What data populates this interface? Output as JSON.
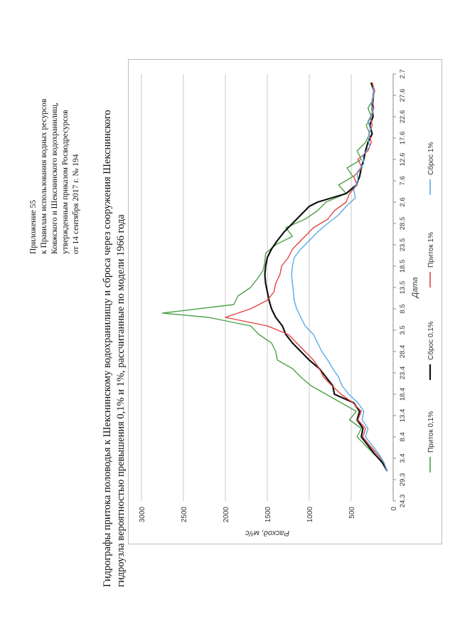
{
  "header": {
    "lines": [
      "Приложение 55",
      "к Правилам использования водных ресурсов",
      "Ковжского и Шекснинского водохранилищ,",
      "утвержденным приказом Росводресурсов",
      "от 14 сентября 2017 г. № 194"
    ]
  },
  "title": {
    "line1": "Гидрографы притока половодья к Шекснинскому водохранилищу и сброса через сооружения Шекснинского",
    "line2": "гидроузла вероятностью превышения 0,1% и 1%, рассчитанные по модели 1966 года"
  },
  "chart_data": {
    "type": "line",
    "title": "",
    "xlabel": "Дата",
    "ylabel": "Расход, м³/с",
    "ylim": [
      0,
      3000
    ],
    "yticks": [
      0,
      500,
      1000,
      1500,
      2000,
      2500,
      3000
    ],
    "xticks": [
      "24.3",
      "29.3",
      "3.4",
      "8.4",
      "13.4",
      "18.4",
      "23.4",
      "28.4",
      "3.5",
      "8.5",
      "13.5",
      "18.5",
      "23.5",
      "28.5",
      "2.6",
      "7.6",
      "12.6",
      "17.6",
      "22.6",
      "27.6",
      "2.7"
    ],
    "day_range": [
      0,
      100
    ],
    "grid": "horizontal",
    "legend_position": "bottom",
    "series": [
      {
        "name": "Приток 0,1%",
        "color": "#4da146",
        "points": [
          [
            7,
            70
          ],
          [
            9,
            120
          ],
          [
            11,
            230
          ],
          [
            13,
            330
          ],
          [
            15,
            430
          ],
          [
            17,
            380
          ],
          [
            19,
            520
          ],
          [
            21,
            440
          ],
          [
            23,
            620
          ],
          [
            25,
            800
          ],
          [
            27,
            980
          ],
          [
            29,
            1100
          ],
          [
            31,
            1200
          ],
          [
            33,
            1380
          ],
          [
            35,
            1400
          ],
          [
            37,
            1450
          ],
          [
            39,
            1600
          ],
          [
            41,
            1700
          ],
          [
            43,
            2200
          ],
          [
            44,
            2750
          ],
          [
            46,
            1900
          ],
          [
            48,
            1850
          ],
          [
            50,
            1700
          ],
          [
            52,
            1620
          ],
          [
            54,
            1550
          ],
          [
            56,
            1530
          ],
          [
            58,
            1520
          ],
          [
            60,
            1400
          ],
          [
            62,
            1200
          ],
          [
            64,
            1280
          ],
          [
            66,
            1050
          ],
          [
            68,
            900
          ],
          [
            70,
            800
          ],
          [
            72,
            560
          ],
          [
            74,
            650
          ],
          [
            76,
            480
          ],
          [
            78,
            550
          ],
          [
            80,
            380
          ],
          [
            82,
            430
          ],
          [
            84,
            330
          ],
          [
            86,
            280
          ],
          [
            88,
            320
          ],
          [
            90,
            260
          ],
          [
            92,
            300
          ],
          [
            94,
            240
          ],
          [
            96,
            230
          ],
          [
            98,
            270
          ]
        ]
      },
      {
        "name": "Сброс 0,1%",
        "color": "#111111",
        "points": [
          [
            7,
            70
          ],
          [
            9,
            130
          ],
          [
            11,
            220
          ],
          [
            13,
            300
          ],
          [
            15,
            380
          ],
          [
            17,
            360
          ],
          [
            19,
            430
          ],
          [
            21,
            400
          ],
          [
            23,
            470
          ],
          [
            25,
            700
          ],
          [
            27,
            720
          ],
          [
            29,
            800
          ],
          [
            31,
            880
          ],
          [
            33,
            1000
          ],
          [
            35,
            1100
          ],
          [
            37,
            1200
          ],
          [
            39,
            1280
          ],
          [
            41,
            1320
          ],
          [
            43,
            1400
          ],
          [
            45,
            1450
          ],
          [
            47,
            1480
          ],
          [
            49,
            1500
          ],
          [
            51,
            1520
          ],
          [
            53,
            1530
          ],
          [
            55,
            1520
          ],
          [
            57,
            1500
          ],
          [
            59,
            1450
          ],
          [
            61,
            1380
          ],
          [
            63,
            1300
          ],
          [
            65,
            1200
          ],
          [
            67,
            1100
          ],
          [
            69,
            1000
          ],
          [
            70,
            900
          ],
          [
            72,
            560
          ],
          [
            74,
            440
          ],
          [
            76,
            400
          ],
          [
            78,
            380
          ],
          [
            80,
            350
          ],
          [
            82,
            330
          ],
          [
            84,
            300
          ],
          [
            86,
            250
          ],
          [
            88,
            280
          ],
          [
            90,
            240
          ],
          [
            92,
            250
          ],
          [
            94,
            240
          ],
          [
            96,
            230
          ],
          [
            98,
            260
          ]
        ]
      },
      {
        "name": "Приток 1%",
        "color": "#e0453f",
        "points": [
          [
            7,
            70
          ],
          [
            9,
            110
          ],
          [
            11,
            190
          ],
          [
            13,
            280
          ],
          [
            15,
            360
          ],
          [
            17,
            330
          ],
          [
            19,
            420
          ],
          [
            21,
            380
          ],
          [
            23,
            480
          ],
          [
            25,
            620
          ],
          [
            27,
            730
          ],
          [
            29,
            830
          ],
          [
            31,
            880
          ],
          [
            33,
            950
          ],
          [
            35,
            1050
          ],
          [
            37,
            1150
          ],
          [
            39,
            1250
          ],
          [
            41,
            1500
          ],
          [
            43,
            2000
          ],
          [
            45,
            1700
          ],
          [
            47,
            1500
          ],
          [
            49,
            1420
          ],
          [
            51,
            1400
          ],
          [
            53,
            1350
          ],
          [
            55,
            1330
          ],
          [
            57,
            1250
          ],
          [
            59,
            1200
          ],
          [
            61,
            1100
          ],
          [
            63,
            1000
          ],
          [
            64,
            950
          ],
          [
            66,
            780
          ],
          [
            68,
            700
          ],
          [
            70,
            560
          ],
          [
            72,
            520
          ],
          [
            74,
            430
          ],
          [
            76,
            470
          ],
          [
            78,
            370
          ],
          [
            80,
            420
          ],
          [
            82,
            300
          ],
          [
            84,
            260
          ],
          [
            86,
            290
          ],
          [
            88,
            250
          ],
          [
            90,
            270
          ],
          [
            92,
            230
          ],
          [
            94,
            250
          ],
          [
            96,
            220
          ],
          [
            98,
            250
          ]
        ]
      },
      {
        "name": "Сброс 1%",
        "color": "#5aa9e6",
        "points": [
          [
            7,
            70
          ],
          [
            9,
            110
          ],
          [
            11,
            170
          ],
          [
            13,
            250
          ],
          [
            15,
            330
          ],
          [
            17,
            300
          ],
          [
            19,
            370
          ],
          [
            21,
            350
          ],
          [
            23,
            420
          ],
          [
            25,
            530
          ],
          [
            27,
            610
          ],
          [
            29,
            650
          ],
          [
            31,
            720
          ],
          [
            33,
            780
          ],
          [
            35,
            850
          ],
          [
            37,
            900
          ],
          [
            39,
            950
          ],
          [
            41,
            1050
          ],
          [
            43,
            1100
          ],
          [
            45,
            1150
          ],
          [
            47,
            1180
          ],
          [
            49,
            1190
          ],
          [
            51,
            1200
          ],
          [
            53,
            1210
          ],
          [
            55,
            1200
          ],
          [
            57,
            1180
          ],
          [
            59,
            1100
          ],
          [
            61,
            1000
          ],
          [
            63,
            900
          ],
          [
            65,
            780
          ],
          [
            67,
            650
          ],
          [
            69,
            560
          ],
          [
            71,
            450
          ],
          [
            73,
            470
          ],
          [
            75,
            420
          ],
          [
            77,
            430
          ],
          [
            79,
            350
          ],
          [
            81,
            360
          ],
          [
            83,
            280
          ],
          [
            85,
            300
          ],
          [
            87,
            270
          ],
          [
            89,
            300
          ],
          [
            91,
            240
          ],
          [
            93,
            260
          ],
          [
            95,
            230
          ],
          [
            97,
            240
          ]
        ]
      }
    ]
  }
}
